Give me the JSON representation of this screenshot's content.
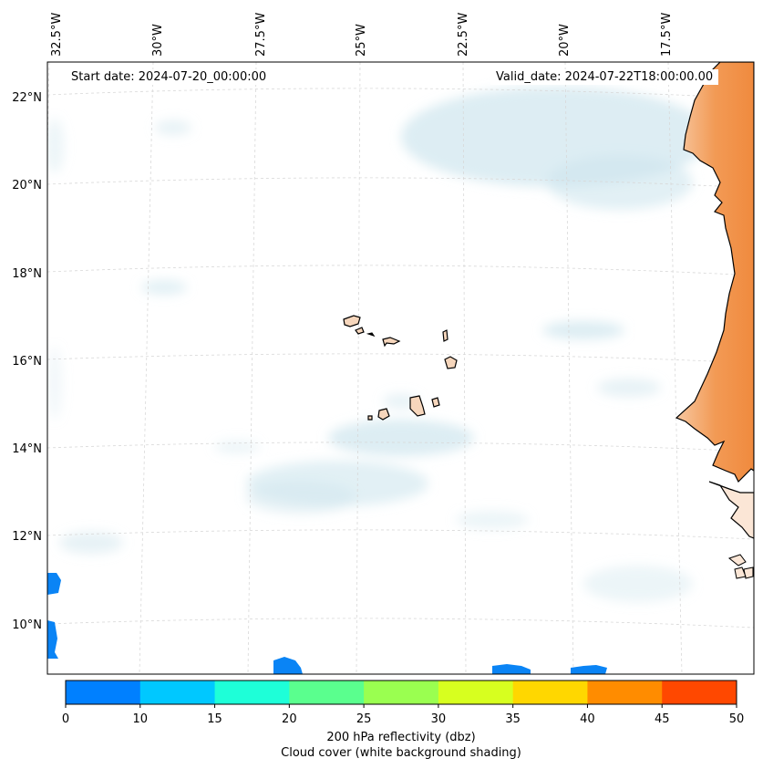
{
  "header": {
    "start_date": "Start date: 2024-07-20_00:00:00",
    "valid_date": "Valid_date: 2024-07-22T18:00:00.00"
  },
  "axes": {
    "lon_labels": [
      "32.5°W",
      "30°W",
      "27.5°W",
      "25°W",
      "22.5°W",
      "20°W",
      "17.5°W"
    ],
    "lat_labels": [
      "22°N",
      "20°N",
      "18°N",
      "16°N",
      "14°N",
      "12°N",
      "10°N"
    ]
  },
  "colorbar": {
    "ticks": [
      "0",
      "10",
      "15",
      "20",
      "25",
      "30",
      "35",
      "40",
      "45",
      "50"
    ],
    "colors": [
      "#0080ff",
      "#00c8ff",
      "#1effd8",
      "#5aff8e",
      "#9aff50",
      "#d7ff1f",
      "#ffd700",
      "#ff8c00",
      "#ff4800"
    ],
    "title_line1": "200 hPa reflectivity (dbz)",
    "title_line2": "Cloud cover (white background shading)"
  },
  "colors": {
    "land": "#f0924a",
    "cloud": "#cfe6ee",
    "reflectivity_low": "#0a84f5"
  }
}
